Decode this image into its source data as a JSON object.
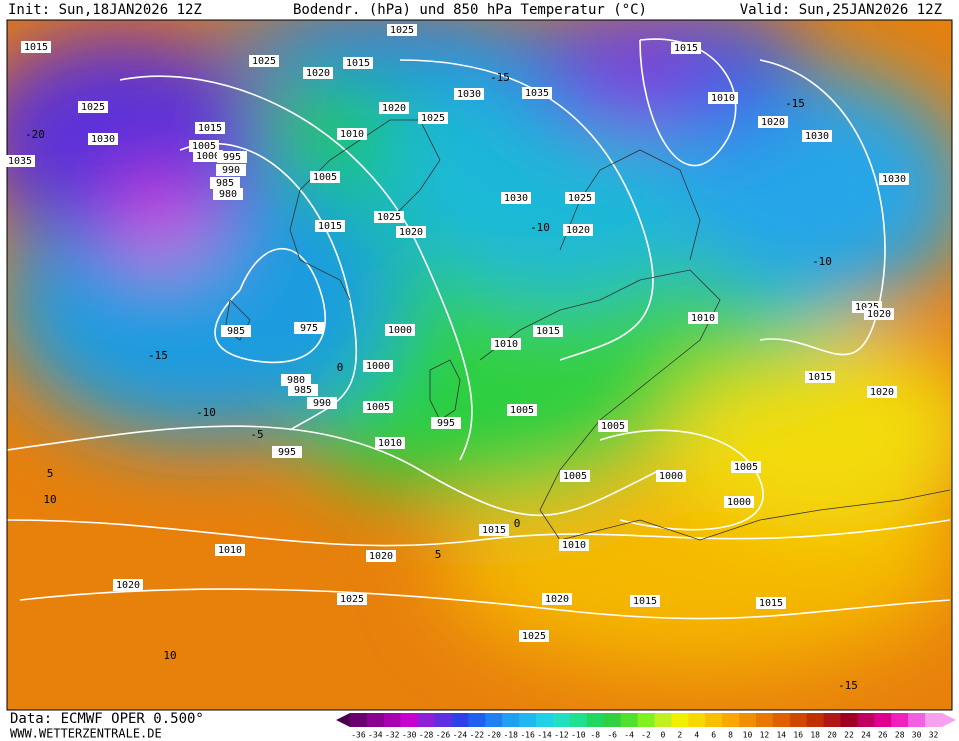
{
  "header": {
    "init": "Init: Sun,18JAN2026 12Z",
    "title": "Bodendr. (hPa) und 850 hPa Temperatur (°C)",
    "valid": "Valid: Sun,25JAN2026 12Z"
  },
  "footer": {
    "data": "Data: ECMWF OPER 0.500°",
    "site": "WWW.WETTERZENTRALE.DE"
  },
  "legend_ticks": [
    -36,
    -34,
    -32,
    -30,
    -28,
    -26,
    -24,
    -22,
    -20,
    -18,
    -16,
    -14,
    -12,
    -10,
    -8,
    -6,
    -4,
    -2,
    0,
    2,
    4,
    6,
    8,
    10,
    12,
    14,
    16,
    18,
    20,
    22,
    24,
    26,
    28,
    30,
    32
  ],
  "isobar_labels": [
    "1025",
    "1015",
    "1025",
    "1020",
    "1015",
    "1015",
    "1025",
    "1030",
    "1035",
    "1010",
    "1020",
    "1025",
    "1030",
    "1010",
    "1020",
    "1030",
    "1015",
    "1005",
    "1000",
    "995",
    "990",
    "985",
    "980",
    "1035",
    "1005",
    "1030",
    "1025",
    "1030",
    "1015",
    "1025",
    "1020",
    "1020",
    "985",
    "975",
    "1000",
    "1015",
    "1010",
    "1010",
    "1025",
    "1020",
    "1000",
    "980",
    "985",
    "990",
    "1005",
    "995",
    "1005",
    "1015",
    "1020",
    "1010",
    "995",
    "1005",
    "1005",
    "1000",
    "1000",
    "1005",
    "1015",
    "1010",
    "1010",
    "1020",
    "1020",
    "1025",
    "1020",
    "1015",
    "1015",
    "1025"
  ],
  "isotherm_labels": [
    "-15",
    "-15",
    "-10",
    "-20",
    "-15",
    "-10",
    "-5",
    "0",
    "5",
    "10",
    "-10",
    "-15",
    "10",
    "5",
    "0"
  ]
}
